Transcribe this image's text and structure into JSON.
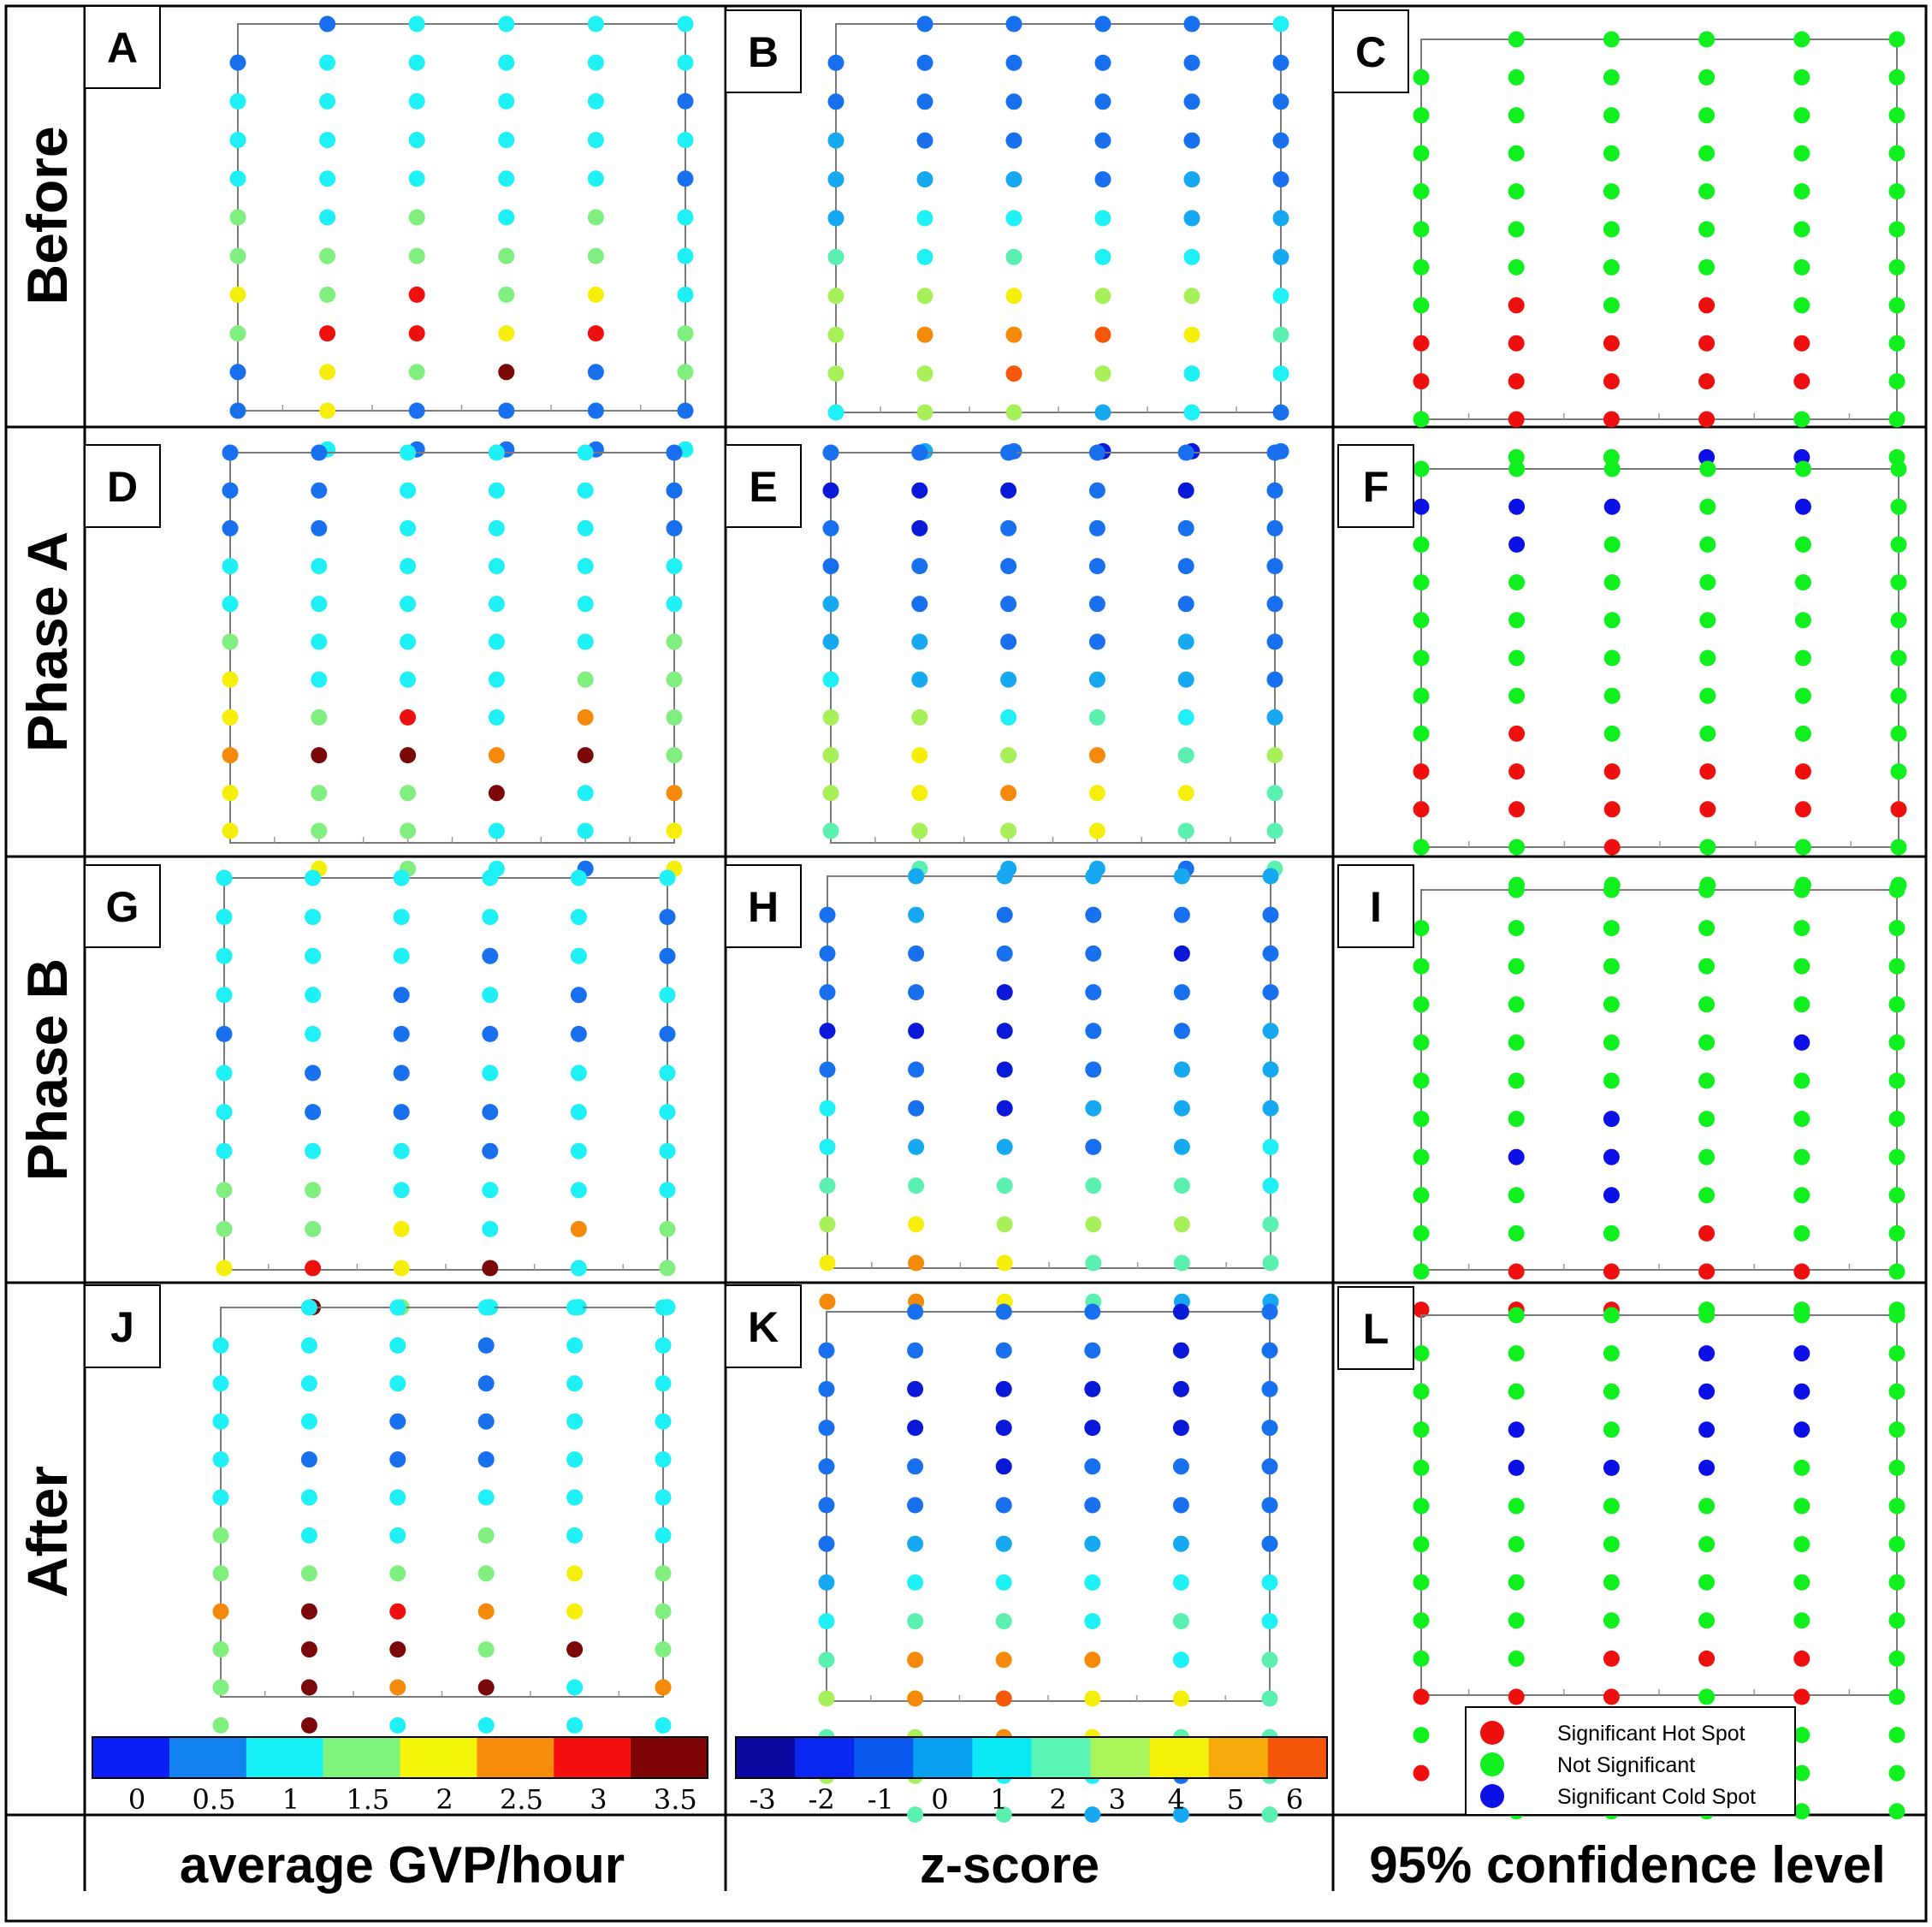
{
  "figure": {
    "row_labels": [
      "Before",
      "Phase A",
      "Phase B",
      "After"
    ],
    "column_labels": [
      "average GVP/hour",
      "z-score",
      "95% confidence level"
    ],
    "panel_letters": [
      "A",
      "B",
      "C",
      "D",
      "E",
      "F",
      "G",
      "H",
      "I",
      "J",
      "K",
      "L"
    ]
  },
  "colorbars": {
    "gvp": {
      "colors": [
        "#0a1ef5",
        "#1482f0",
        "#14f0f5",
        "#7df57d",
        "#f5f50a",
        "#f58c0a",
        "#f50f0f",
        "#7d0505"
      ],
      "ticks": [
        "0",
        "0.5",
        "1",
        "1.5",
        "2",
        "2.5",
        "3",
        "3.5"
      ]
    },
    "z": {
      "colors": [
        "#0a0aa0",
        "#0a28f0",
        "#0a5af0",
        "#0aa0f0",
        "#0aeaf5",
        "#5af5b4",
        "#aaf55a",
        "#f5f00a",
        "#f5aa0a",
        "#f5550a"
      ],
      "ticks": [
        "-3",
        "-2",
        "-1",
        "0",
        "1",
        "2",
        "3",
        "4",
        "5",
        "6"
      ]
    }
  },
  "legend": {
    "items": [
      {
        "label": "Significant Hot Spot",
        "color": "#ee0f0f"
      },
      {
        "label": "Not Significant",
        "color": "#0ff01e"
      },
      {
        "label": "Significant Cold Spot",
        "color": "#0a10e6"
      }
    ]
  },
  "chart_data": [
    {
      "panel": "A",
      "type": "scatter",
      "measure": "average GVP/hour",
      "rows_top_to_bottom": [
        "..B.C.C.C.C.C",
        "B.C.C.C.C.C..",
        "C.C.C.C.C.B..",
        "C.C.C.C.C.C..",
        "C.C.C.C.C.B..",
        "G.C.G.C.G.C..",
        "G.G.G.G.G.C..",
        "Y.G.R.G.Y.C..",
        "G.R.R.Y.R.G..",
        "B.Y.G.D.B.G..",
        "B.Y.B.B.B.B..",
        "..C.B.B.B.C.."
      ]
    },
    {
      "panel": "B",
      "type": "scatter",
      "measure": "z-score",
      "rows_top_to_bottom": [
        "..B.B.B.B.C..",
        "B.B.B.B.B.B..",
        "B.B.B.B.B.B..",
        "L.B.B.B.B.B..",
        "L.L.L.B.L.B..",
        "L.C.C.C.L.L..",
        "M.C.M.C.C.L..",
        "H.H.Y.H.H.C..",
        "H.O.O.F.Y.M..",
        "H.H.F.H.C.C..",
        "C.H.H.L.C.B..",
        "..L.B.N.N.B.."
      ]
    },
    {
      "panel": "C",
      "type": "scatter",
      "measure": "95% confidence level",
      "rows_top_to_bottom": [
        "..G.G.G.G.G..",
        "G.G.G.G.G.G..",
        "G.G.G.G.G.G..",
        "G.G.G.G.G.G..",
        "G.G.G.G.G.G..",
        "G.G.G.G.G.G..",
        "G.G.G.G.G.G..",
        "G.R.G.R.G.G..",
        "R.R.R.R.R.G..",
        "R.R.R.R.R.G..",
        "G.R.R.R.G.G..",
        "..G.G.B.B.G.."
      ]
    },
    {
      "panel": "D",
      "type": "scatter",
      "measure": "average GVP/hour",
      "rows_top_to_bottom": [
        "B.B.C.C.C.B..",
        "B.B.C.C.C.B..",
        "B.B.C.C.C.B..",
        "C.C.C.C.C.C..",
        "C.C.C.C.C.C..",
        "G.C.C.C.C.G..",
        "Y.C.C.C.G.G..",
        "Y.G.R.C.O.G..",
        "O.D.D.O.D.G..",
        "Y.G.G.D.C.O..",
        "Y.G.G.C.C.Y..",
        "..Y.G.C.B.Y.."
      ]
    },
    {
      "panel": "E",
      "type": "scatter",
      "measure": "z-score",
      "rows_top_to_bottom": [
        "B.B.B.B.B.B..",
        "N.N.N.B.N.B..",
        "B.N.B.B.B.B..",
        "B.B.B.B.B.B..",
        "L.B.B.B.B.B..",
        "L.L.B.B.L.B..",
        "C.L.L.L.L.B..",
        "H.H.C.M.C.L..",
        "H.Y.H.O.M.H..",
        "H.Y.O.Y.Y.M..",
        "M.H.H.Y.M.M..",
        "..M.L.L.B.M.."
      ]
    },
    {
      "panel": "F",
      "type": "scatter",
      "measure": "95% confidence level",
      "rows_top_to_bottom": [
        "G.G.G.G.G.G..",
        "B.B.B.G.B.G..",
        "G.B.G.G.G.G..",
        "G.G.G.G.G.G..",
        "G.G.G.G.G.G..",
        "G.G.G.G.G.G..",
        "G.G.G.G.G.G..",
        "G.R.G.G.G.G..",
        "R.R.R.R.R.G..",
        "R.R.R.R.R.R..",
        "G.G.R.G.G.G..",
        "..G.G.G.G.G.."
      ]
    },
    {
      "panel": "G",
      "type": "scatter",
      "measure": "average GVP/hour",
      "rows_top_to_bottom": [
        "C.C.C.C.C.C..",
        "C.C.C.C.C.B..",
        "C.C.C.B.C.B..",
        "C.C.B.C.B.C..",
        "B.C.B.B.B.B..",
        "C.B.B.C.C.C..",
        "C.B.B.B.C.C..",
        "C.C.C.B.C.C..",
        "G.G.C.C.C.C..",
        "G.G.Y.C.O.G..",
        "Y.R.Y.D.C.G..",
        "..D.G.C.C.C.."
      ]
    },
    {
      "panel": "H",
      "type": "scatter",
      "measure": "z-score",
      "rows_top_to_bottom": [
        "..L.L.L.L.L..",
        "B.L.B.B.B.B..",
        "B.B.B.B.N.B..",
        "B.B.N.B.B.B..",
        "N.N.N.B.B.L..",
        "B.B.N.B.L.L..",
        "C.B.N.L.L.L..",
        "C.L.L.B.L.C..",
        "M.M.M.M.M.C..",
        "H.Y.H.H.H.M..",
        "Y.O.Y.M.M.M..",
        "O.O.Y.M.L.L.."
      ]
    },
    {
      "panel": "I",
      "type": "scatter",
      "measure": "95% confidence level",
      "rows_top_to_bottom": [
        "..G.G.G.G.G..",
        "G.G.G.G.G.G..",
        "G.G.G.G.G.G..",
        "G.G.G.G.G.G..",
        "G.G.G.G.B.G..",
        "G.G.G.G.G.G..",
        "G.G.B.G.G.G..",
        "G.B.B.G.G.G..",
        "G.G.B.G.G.G..",
        "G.G.G.R.G.G..",
        "G.R.R.R.R.G..",
        "R.R.R.G.G.G.."
      ]
    },
    {
      "panel": "J",
      "type": "scatter",
      "measure": "average GVP/hour",
      "rows_top_to_bottom": [
        "..C.C.C.C.C..",
        "C.C.C.B.C.C..",
        "C.C.C.B.C.C..",
        "C.C.B.B.C.C..",
        "C.B.B.B.C.C..",
        "C.C.C.C.C.C..",
        "G.C.C.G.C.C..",
        "G.G.G.G.Y.G..",
        "O.D.R.O.Y.G..",
        "G.D.D.G.D.G..",
        "G.D.O.D.C.O..",
        "G.D.C.C.C.C.."
      ]
    },
    {
      "panel": "K",
      "type": "scatter",
      "measure": "z-score",
      "rows_top_to_bottom": [
        "..B.B.B.N.B..",
        "B.B.B.B.N.B..",
        "B.N.N.N.N.B..",
        "B.N.N.N.N.B..",
        "B.B.N.B.B.B..",
        "B.B.B.B.B.B..",
        "B.L.L.L.L.B..",
        "L.C.C.C.C.C..",
        "C.M.M.C.M.C..",
        "M.O.O.O.C.M..",
        "H.O.F.Y.Y.M..",
        "M.H.O.Y.M.M..",
        "H.H.C.C.B.M..",
        "..M.M.L.L.M.."
      ]
    },
    {
      "panel": "L",
      "type": "scatter",
      "measure": "95% confidence level",
      "rows_top_to_bottom": [
        "..G.G.G.G.G..",
        "G.G.G.B.B.G..",
        "G.G.G.B.B.G..",
        "G.B.G.B.B.G..",
        "G.B.B.B.G.G..",
        "G.G.G.G.G.G..",
        "G.G.G.G.G.G..",
        "G.G.G.G.G.G..",
        "G.G.G.G.G.G..",
        "G.G.R.R.R.G..",
        "R.R.R.G.R.G..",
        "G.R.R.R.G.G..",
        "R.R.G.G.G.G..",
        "..G.G.G.G.G.."
      ]
    }
  ]
}
